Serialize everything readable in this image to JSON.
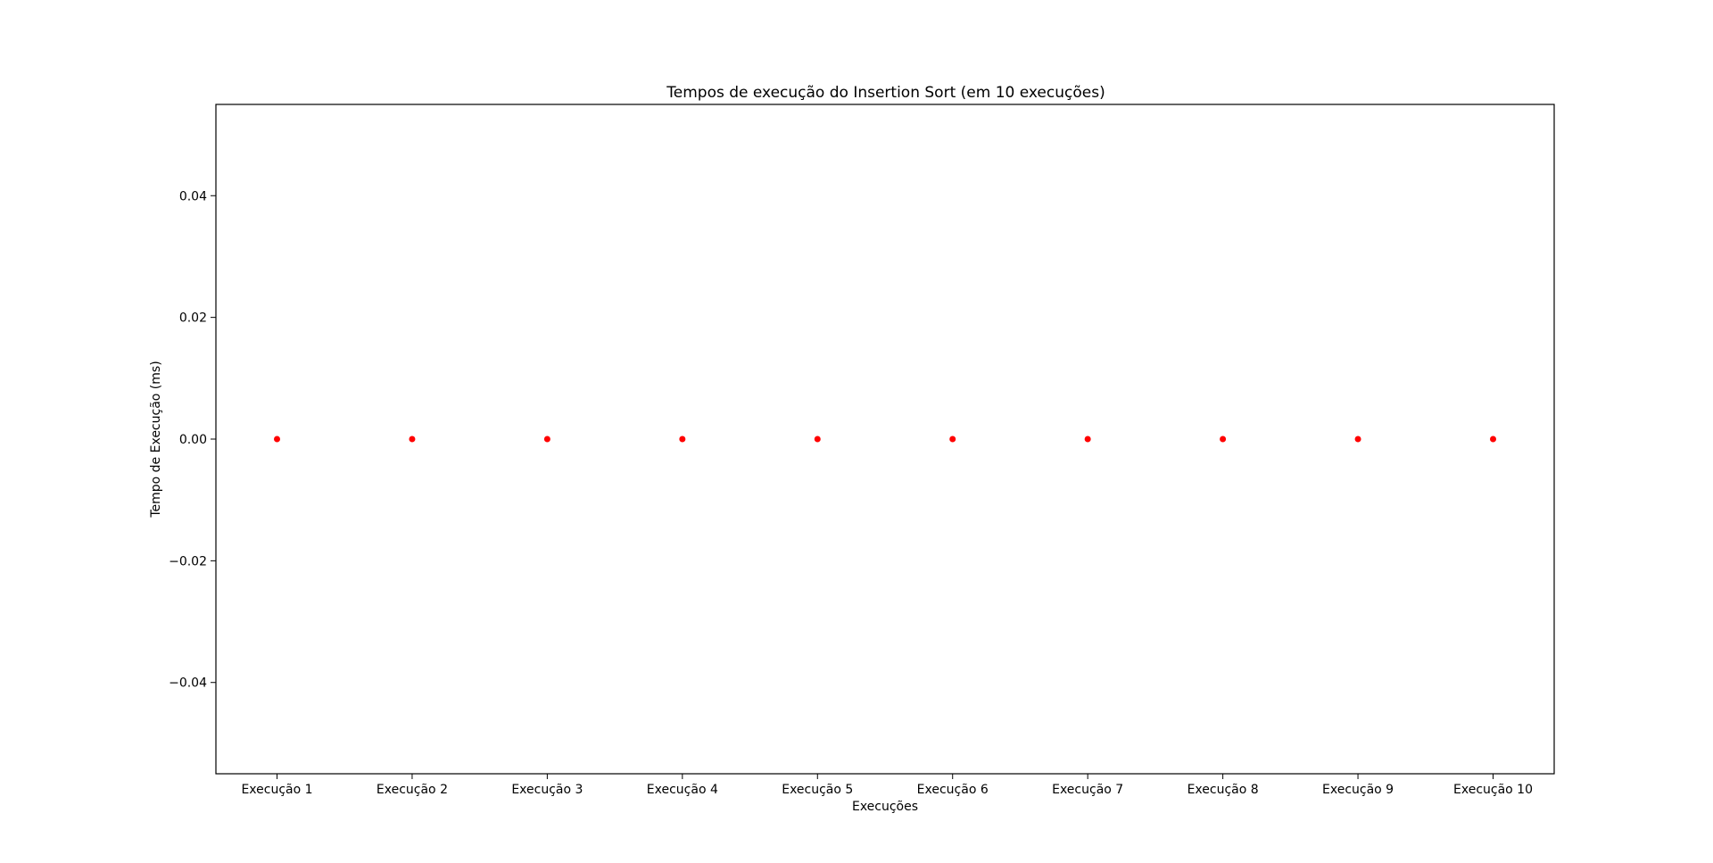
{
  "chart_data": {
    "type": "scatter",
    "title": "Tempos de execução do Insertion Sort (em 10 execuções)",
    "xlabel": "Execuções",
    "ylabel": "Tempo de Execução (ms)",
    "categories": [
      "Execução 1",
      "Execução 2",
      "Execução 3",
      "Execução 4",
      "Execução 5",
      "Execução 6",
      "Execução 7",
      "Execução 8",
      "Execução 9",
      "Execução 10"
    ],
    "values": [
      0,
      0,
      0,
      0,
      0,
      0,
      0,
      0,
      0,
      0
    ],
    "ylim": [
      -0.055,
      0.055
    ],
    "yticks": [
      -0.04,
      -0.02,
      0.0,
      0.02,
      0.04
    ],
    "ytick_labels": [
      "−0.04",
      "−0.02",
      "0.00",
      "0.02",
      "0.04"
    ],
    "marker_color": "#ff0000",
    "grid": false,
    "legend": "none"
  }
}
